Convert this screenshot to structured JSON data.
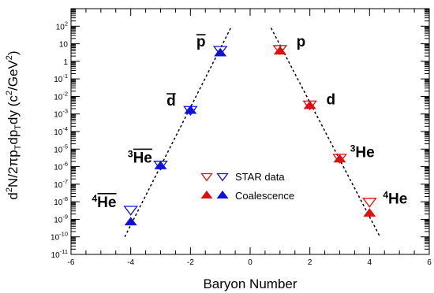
{
  "chart_data": {
    "type": "scatter",
    "xlabel": "Baryon Number",
    "ylabel": "d2N/2πpTdpTdy (c2/GeV2)",
    "ylabel_parts": {
      "d": "d",
      "sup2": "2",
      "mid": "N/2πp",
      "subT1": "T",
      "dp": "dp",
      "subT2": "T",
      "dy": "dy (c",
      "sup2b": "2",
      "gev": "/GeV",
      "sup2c": "2",
      "close": ")"
    },
    "xlim": [
      -6,
      6
    ],
    "ylim": [
      1e-11,
      1000
    ],
    "yscale": "log",
    "x_ticks": [
      -6,
      -4,
      -2,
      0,
      2,
      4,
      6
    ],
    "y_tick_exponents": [
      -11,
      -10,
      -9,
      -8,
      -7,
      -6,
      -5,
      -4,
      -3,
      -2,
      -1,
      0,
      1,
      2
    ],
    "y_tick_labels": [
      "10-11",
      "10-10",
      "10-9",
      "10-8",
      "10-7",
      "10-6",
      "10-5",
      "10-4",
      "10-3",
      "10-2",
      "10-1",
      "1",
      "10",
      "102"
    ],
    "series": [
      {
        "name": "STAR data",
        "marker": "open-triangle-down",
        "points": [
          {
            "x": -4,
            "y": 3.5e-09,
            "color": "#1010dd"
          },
          {
            "x": -3,
            "y": 1.3e-06,
            "color": "#1010dd"
          },
          {
            "x": -2,
            "y": 0.0017,
            "color": "#1010dd"
          },
          {
            "x": -1,
            "y": 4.5,
            "color": "#1010dd"
          },
          {
            "x": 1,
            "y": 5.0,
            "color": "#dd1010"
          },
          {
            "x": 2,
            "y": 0.0035,
            "color": "#dd1010"
          },
          {
            "x": 3,
            "y": 3.2e-06,
            "color": "#dd1010"
          },
          {
            "x": 4,
            "y": 1e-08,
            "color": "#dd1010"
          }
        ]
      },
      {
        "name": "Coalescence",
        "marker": "filled-triangle-up",
        "points": [
          {
            "x": -4,
            "y": 7e-10,
            "color": "#1010dd"
          },
          {
            "x": -3,
            "y": 1.1e-06,
            "color": "#1010dd"
          },
          {
            "x": -2,
            "y": 0.0016,
            "color": "#1010dd"
          },
          {
            "x": -1,
            "y": 3.0,
            "color": "#1010dd"
          },
          {
            "x": 1,
            "y": 3.8,
            "color": "#dd1010"
          },
          {
            "x": 2,
            "y": 0.003,
            "color": "#dd1010"
          },
          {
            "x": 3,
            "y": 2.7e-06,
            "color": "#dd1010"
          },
          {
            "x": 4,
            "y": 2.2e-09,
            "color": "#dd1010"
          }
        ]
      }
    ],
    "fit_lines": [
      {
        "style": "dashed",
        "from": {
          "x": -4.2,
          "y": 1e-10
        },
        "to": {
          "x": -0.65,
          "y": 80
        }
      },
      {
        "style": "dashed",
        "from": {
          "x": 0.7,
          "y": 80
        },
        "to": {
          "x": 4.35,
          "y": 1e-10
        }
      }
    ],
    "particle_labels": [
      {
        "base": "p",
        "sup": "",
        "overline": true,
        "x": -1.8,
        "y": 7
      },
      {
        "base": "d",
        "sup": "",
        "overline": true,
        "x": -2.8,
        "y": 0.003
      },
      {
        "base": "He",
        "sup": "3",
        "overline": true,
        "x": -4.1,
        "y": 1.7e-06
      },
      {
        "base": "He",
        "sup": "4",
        "overline": true,
        "x": -5.3,
        "y": 5e-09
      },
      {
        "base": "p",
        "sup": "",
        "overline": false,
        "x": 1.55,
        "y": 7
      },
      {
        "base": "d",
        "sup": "",
        "overline": false,
        "x": 2.55,
        "y": 0.0035
      },
      {
        "base": "He",
        "sup": "3",
        "overline": false,
        "x": 3.35,
        "y": 3.5e-06
      },
      {
        "base": "He",
        "sup": "4",
        "overline": false,
        "x": 4.45,
        "y": 8e-09
      }
    ],
    "legend": {
      "placement": "center",
      "entries": [
        {
          "label": "STAR data",
          "marker": "open-triangle-down",
          "colors": [
            "#dd1010",
            "#1010dd"
          ]
        },
        {
          "label": "Coalescence",
          "marker": "filled-triangle-up",
          "colors": [
            "#dd1010",
            "#1010dd"
          ]
        }
      ]
    },
    "grid": false
  }
}
